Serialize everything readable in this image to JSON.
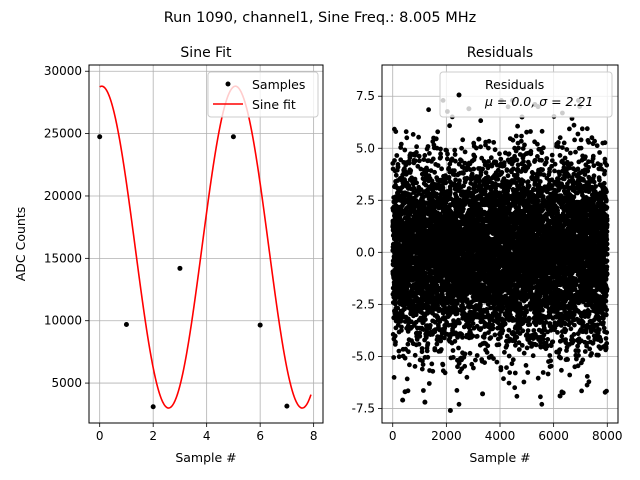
{
  "suptitle": "Run 1090, channel1, Sine Freq.: 8.005 MHz",
  "chart_data": [
    {
      "type": "line",
      "title": "Sine Fit",
      "xlabel": "Sample #",
      "ylabel": "ADC Counts",
      "xlim": [
        -0.4,
        8.35
      ],
      "ylim": [
        1800,
        30500
      ],
      "xticks": [
        0,
        2,
        4,
        6,
        8
      ],
      "yticks": [
        5000,
        10000,
        15000,
        20000,
        25000,
        30000
      ],
      "grid": true,
      "legend": "top-right",
      "series": [
        {
          "name": "Samples",
          "kind": "scatter",
          "color": "#000000",
          "x": [
            0,
            1,
            2,
            3,
            5,
            6,
            7
          ],
          "y": [
            24750,
            9700,
            3100,
            14200,
            24750,
            9650,
            3150
          ]
        },
        {
          "name": "Sine fit",
          "kind": "line",
          "color": "#ff0000",
          "function": {
            "type": "sine",
            "offset": 15900,
            "amplitude": 12900,
            "period_samples": 4.997,
            "phase_sample": 0.077,
            "x_range": [
              0,
              7.9
            ]
          }
        }
      ]
    },
    {
      "type": "scatter",
      "title": "Residuals",
      "xlabel": "Sample #",
      "ylabel": "",
      "xlim": [
        -400,
        8400
      ],
      "ylim": [
        -8.2,
        9.0
      ],
      "xticks": [
        0,
        2000,
        4000,
        6000,
        8000
      ],
      "yticks": [
        -7.5,
        -5.0,
        -2.5,
        0.0,
        2.5,
        5.0,
        7.5
      ],
      "grid": true,
      "legend": "top-right",
      "series": [
        {
          "name": "Residuals",
          "legend_subtext": "μ = 0.0, σ = 2.21",
          "color": "#000000",
          "distribution": {
            "type": "normal",
            "mean": 0.0,
            "sigma": 2.21,
            "count": 8000,
            "x_range": [
              0,
              8000
            ]
          },
          "x": [
            2150,
            1200,
            5300,
            370,
            3350,
            460,
            2840,
            4820,
            6240,
            5420
          ],
          "y": [
            -7.6,
            -7.2,
            7.1,
            -7.1,
            -6.8,
            -6.7,
            6.9,
            6.5,
            -6.9,
            7.0
          ]
        }
      ]
    }
  ]
}
